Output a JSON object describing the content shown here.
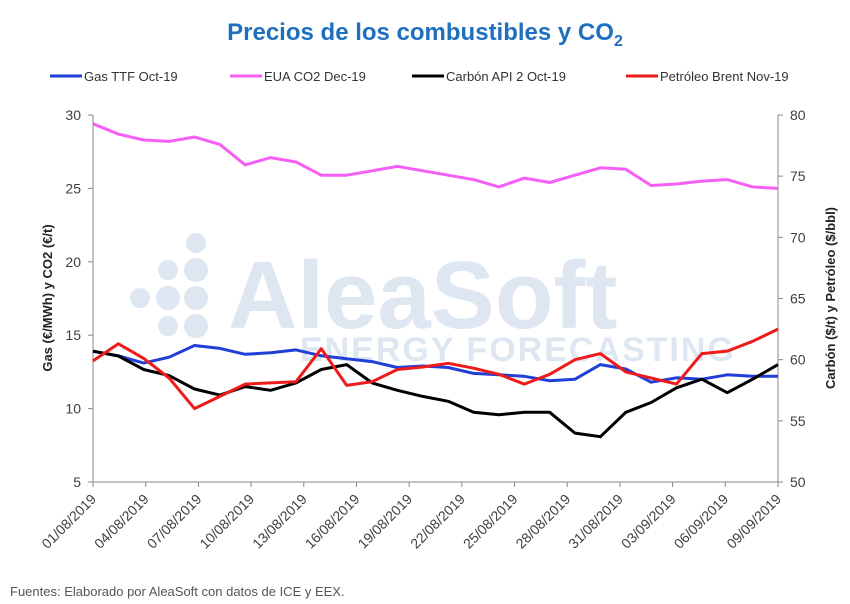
{
  "chart_data": {
    "type": "line",
    "title": "Precios de los combustibles y CO",
    "title_subscript": "2",
    "ylabel_left": "Gas (€/MWh) y CO2 (€/t)",
    "ylabel_right": "Carbón ($/t) y Petróleo ($/bbl)",
    "ylim_left": [
      5,
      30
    ],
    "ylim_right": [
      50,
      80
    ],
    "yticks_left": [
      "5",
      "10",
      "15",
      "20",
      "25",
      "30"
    ],
    "yticks_right": [
      "50",
      "55",
      "60",
      "65",
      "70",
      "75",
      "80"
    ],
    "grid": false,
    "legend_position": "top",
    "x": [
      "01/08/2019",
      "02/08/2019",
      "05/08/2019",
      "06/08/2019",
      "07/08/2019",
      "08/08/2019",
      "09/08/2019",
      "12/08/2019",
      "13/08/2019",
      "14/08/2019",
      "15/08/2019",
      "16/08/2019",
      "19/08/2019",
      "20/08/2019",
      "21/08/2019",
      "22/08/2019",
      "23/08/2019",
      "26/08/2019",
      "27/08/2019",
      "28/08/2019",
      "29/08/2019",
      "30/08/2019",
      "02/09/2019",
      "03/09/2019",
      "04/09/2019",
      "05/09/2019",
      "06/09/2019",
      "09/09/2019"
    ],
    "xtick_labels": [
      "01/08/2019",
      "04/08/2019",
      "07/08/2019",
      "10/08/2019",
      "13/08/2019",
      "16/08/2019",
      "19/08/2019",
      "22/08/2019",
      "25/08/2019",
      "28/08/2019",
      "31/08/2019",
      "03/09/2019",
      "06/09/2019",
      "09/09/2019"
    ],
    "series": [
      {
        "name": "Gas TTF Oct-19",
        "axis": "left",
        "color": "#1f3fd6",
        "values": [
          13.9,
          13.6,
          13.1,
          13.5,
          14.3,
          14.1,
          13.7,
          13.8,
          14.0,
          13.6,
          13.4,
          13.2,
          12.8,
          12.9,
          12.8,
          12.4,
          12.3,
          12.2,
          11.9,
          12.0,
          13.0,
          12.7,
          11.8,
          12.1,
          12.0,
          12.3,
          12.2,
          12.2
        ]
      },
      {
        "name": "EUA CO2 Dec-19",
        "axis": "left",
        "color": "#f55ff5",
        "values": [
          29.4,
          28.7,
          28.3,
          28.2,
          28.5,
          28.0,
          26.6,
          27.1,
          26.8,
          25.9,
          25.9,
          26.2,
          26.5,
          26.2,
          25.9,
          25.6,
          25.1,
          25.7,
          25.4,
          25.9,
          26.4,
          26.3,
          25.2,
          25.3,
          25.5,
          25.6,
          25.1,
          25.0
        ]
      },
      {
        "name": "Carbón API 2 Oct-19",
        "axis": "right",
        "color": "#000000",
        "values": [
          60.7,
          60.3,
          59.2,
          58.7,
          57.6,
          57.1,
          57.8,
          57.5,
          58.1,
          59.2,
          59.6,
          58.1,
          57.5,
          57.0,
          56.6,
          55.7,
          55.5,
          55.7,
          55.7,
          54.0,
          53.7,
          55.7,
          56.5,
          57.7,
          58.4,
          57.3,
          58.4,
          59.6
        ]
      },
      {
        "name": "Petróleo Brent Nov-19",
        "axis": "right",
        "color": "#ee1b1b",
        "values": [
          59.9,
          61.3,
          60.1,
          58.5,
          56.0,
          57.0,
          58.0,
          58.1,
          58.2,
          60.9,
          57.9,
          58.2,
          59.2,
          59.4,
          59.7,
          59.3,
          58.8,
          58.0,
          58.8,
          60.0,
          60.5,
          59.0,
          58.5,
          58.0,
          60.5,
          60.7,
          61.5,
          62.5
        ]
      }
    ]
  },
  "watermark": {
    "brand": "AleaSoft",
    "tagline": "ENERGY FORECASTING"
  },
  "source": "Fuentes: Elaborado por AleaSoft con datos de ICE y EEX."
}
